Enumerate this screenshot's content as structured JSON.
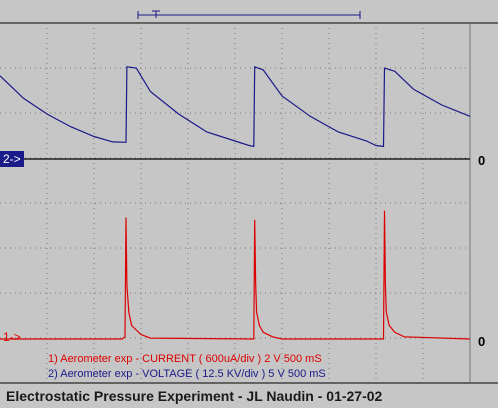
{
  "chart_data": {
    "type": "line",
    "background": "#c6c6c6",
    "trace_colors": {
      "voltage": "#1a1a88",
      "current": "#dd0000"
    },
    "grid": true,
    "time_axis": {
      "unit": "ms",
      "per_division": 500,
      "range": [
        0,
        5000
      ]
    },
    "markers": {
      "ch2": {
        "label": "2->",
        "zero_label": "0"
      },
      "ch1": {
        "label": "1->",
        "zero_label": "0"
      }
    },
    "legend": [
      {
        "text": "1) Aerometer exp - CURRENT ( 600uA/div ) 2  V 500 mS",
        "color": "#dd0000"
      },
      {
        "text": "2) Aerometer exp - VOLTAGE ( 12.5 KV/div ) 5  V 500 mS",
        "color": "#1a1a88"
      }
    ],
    "series": [
      {
        "name": "2) Aerometer exp - VOLTAGE ( 12.5 KV/div ) 5  V 500 mS",
        "unit": "div",
        "x": [
          0,
          250,
          500,
          750,
          1000,
          1200,
          1340,
          1350,
          1450,
          1600,
          1900,
          2200,
          2500,
          2650,
          2700,
          2710,
          2800,
          3000,
          3300,
          3600,
          3900,
          4000,
          4080,
          4090,
          4200,
          4400,
          4700,
          5000
        ],
        "y": [
          1.85,
          1.35,
          1.0,
          0.72,
          0.5,
          0.38,
          0.37,
          2.05,
          2.02,
          1.5,
          1.0,
          0.6,
          0.4,
          0.3,
          0.28,
          2.05,
          1.98,
          1.4,
          0.95,
          0.6,
          0.4,
          0.3,
          0.28,
          2.02,
          1.95,
          1.55,
          1.2,
          0.95
        ]
      },
      {
        "name": "1) Aerometer exp - CURRENT ( 600uA/div ) 2  V 500 mS",
        "unit": "div",
        "x": [
          0,
          1300,
          1330,
          1340,
          1350,
          1370,
          1400,
          1500,
          1600,
          2700,
          2710,
          2720,
          2730,
          2760,
          2800,
          2900,
          3000,
          4080,
          4090,
          4100,
          4110,
          4140,
          4200,
          4300,
          5000
        ],
        "y": [
          0,
          0,
          0.05,
          2.7,
          1.2,
          0.6,
          0.3,
          0.1,
          0.02,
          0,
          2.65,
          1.2,
          0.6,
          0.3,
          0.15,
          0.05,
          0,
          0,
          2.85,
          1.2,
          0.6,
          0.3,
          0.15,
          0.05,
          0
        ]
      }
    ]
  },
  "caption": "Electrostatic Pressure Experiment - JL Naudin - 01-27-02"
}
